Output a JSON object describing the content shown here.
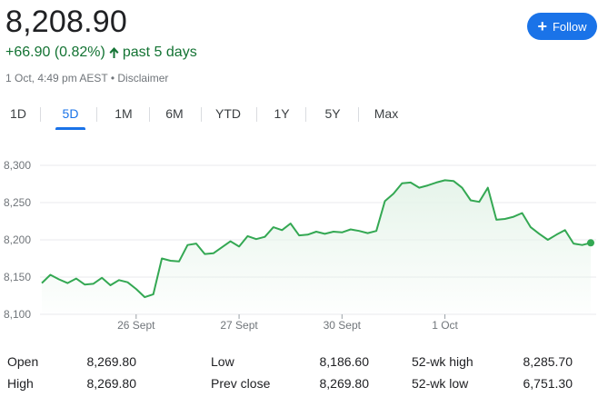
{
  "quote": {
    "price": "8,208.90",
    "change": "+66.90 (0.82%)",
    "period": "past 5 days",
    "timestamp": "1 Oct, 4:49 pm AEST",
    "separator": "•",
    "disclaimer": "Disclaimer",
    "change_color": "#137333",
    "up_icon": "arrow-up-icon"
  },
  "follow_button": {
    "label": "Follow",
    "icon": "plus-icon",
    "color": "#1a73e8"
  },
  "tabs": [
    {
      "label": "1D",
      "active": false
    },
    {
      "label": "5D",
      "active": true
    },
    {
      "label": "1M",
      "active": false
    },
    {
      "label": "6M",
      "active": false
    },
    {
      "label": "YTD",
      "active": false
    },
    {
      "label": "1Y",
      "active": false
    },
    {
      "label": "5Y",
      "active": false
    },
    {
      "label": "Max",
      "active": false
    }
  ],
  "chart_data": {
    "type": "area",
    "ylim": [
      8100,
      8300
    ],
    "y_ticks": [
      "8,300",
      "8,250",
      "8,200",
      "8,150",
      "8,100"
    ],
    "y_tick_values": [
      8300,
      8250,
      8200,
      8150,
      8100
    ],
    "x_labels": [
      "26 Sept",
      "27 Sept",
      "30 Sept",
      "1 Oct"
    ],
    "x_label_index": [
      11,
      23,
      35,
      47
    ],
    "line_color": "#34a853",
    "fill_color": "#e6f4ea",
    "series": [
      {
        "values": [
          8142,
          8153,
          8147,
          8142,
          8148,
          8140,
          8141,
          8149,
          8139,
          8146,
          8143,
          8134,
          8123,
          8127,
          8175,
          8172,
          8171,
          8193,
          8195,
          8181,
          8182,
          8190,
          8198,
          8191,
          8205,
          8201,
          8204,
          8217,
          8213,
          8222,
          8206,
          8207,
          8211,
          8208,
          8211,
          8210,
          8214,
          8212,
          8209,
          8212,
          8252,
          8262,
          8276,
          8277,
          8270,
          8273,
          8277,
          8280,
          8279,
          8270,
          8253,
          8251,
          8270,
          8227,
          8228,
          8231,
          8236,
          8217,
          8208,
          8200,
          8207,
          8213,
          8195,
          8193,
          8196
        ]
      }
    ]
  },
  "stats": [
    {
      "label": "Open",
      "value": "8,269.80"
    },
    {
      "label": "Low",
      "value": "8,186.60"
    },
    {
      "label": "52-wk high",
      "value": "8,285.70"
    },
    {
      "label": "High",
      "value": "8,269.80"
    },
    {
      "label": "Prev close",
      "value": "8,269.80"
    },
    {
      "label": "52-wk low",
      "value": "6,751.30"
    }
  ]
}
